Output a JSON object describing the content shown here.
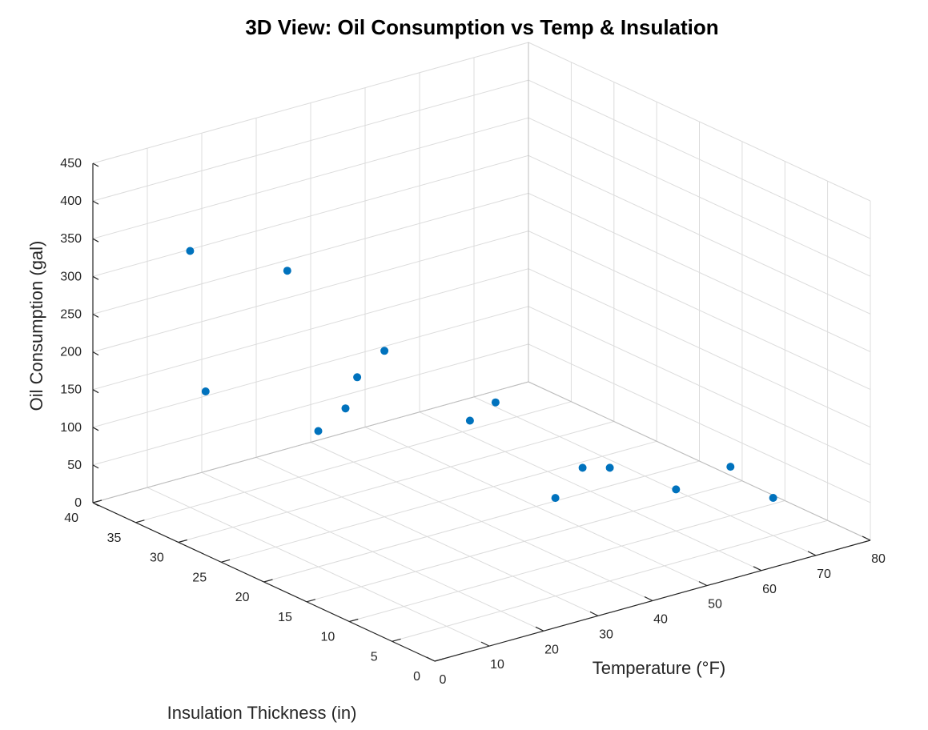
{
  "chart_data": {
    "type": "scatter",
    "title": "3D View: Oil Consumption vs Temp & Insulation",
    "xlabel": "Temperature (°F)",
    "ylabel": "Insulation Thickness (in)",
    "zlabel": "Oil Consumption (gal)",
    "xlim": [
      0,
      80
    ],
    "ylim": [
      0,
      40
    ],
    "zlim": [
      0,
      450
    ],
    "xticks": [
      0,
      10,
      20,
      30,
      40,
      50,
      60,
      70,
      80
    ],
    "yticks": [
      0,
      5,
      10,
      15,
      20,
      25,
      30,
      35,
      40
    ],
    "zticks": [
      0,
      50,
      100,
      150,
      200,
      250,
      300,
      350,
      400,
      450
    ],
    "grid": true,
    "marker_color": "#0072BD",
    "points": [
      {
        "x": 10,
        "y": 35,
        "z": 340
      },
      {
        "x": 20,
        "y": 30,
        "z": 320
      },
      {
        "x": 5,
        "y": 30,
        "z": 190
      },
      {
        "x": 10,
        "y": 20,
        "z": 180
      },
      {
        "x": 15,
        "y": 20,
        "z": 200
      },
      {
        "x": 30,
        "y": 12,
        "z": 220
      },
      {
        "x": 30,
        "y": 15,
        "z": 180
      },
      {
        "x": 25,
        "y": 25,
        "z": 195
      },
      {
        "x": 30,
        "y": 25,
        "z": 220
      },
      {
        "x": 35,
        "y": 5,
        "z": 160
      },
      {
        "x": 30,
        "y": 5,
        "z": 130
      },
      {
        "x": 40,
        "y": 5,
        "z": 150
      },
      {
        "x": 70,
        "y": 10,
        "z": 65
      },
      {
        "x": 60,
        "y": 10,
        "z": 55
      },
      {
        "x": 70,
        "y": 5,
        "z": 50
      }
    ]
  }
}
